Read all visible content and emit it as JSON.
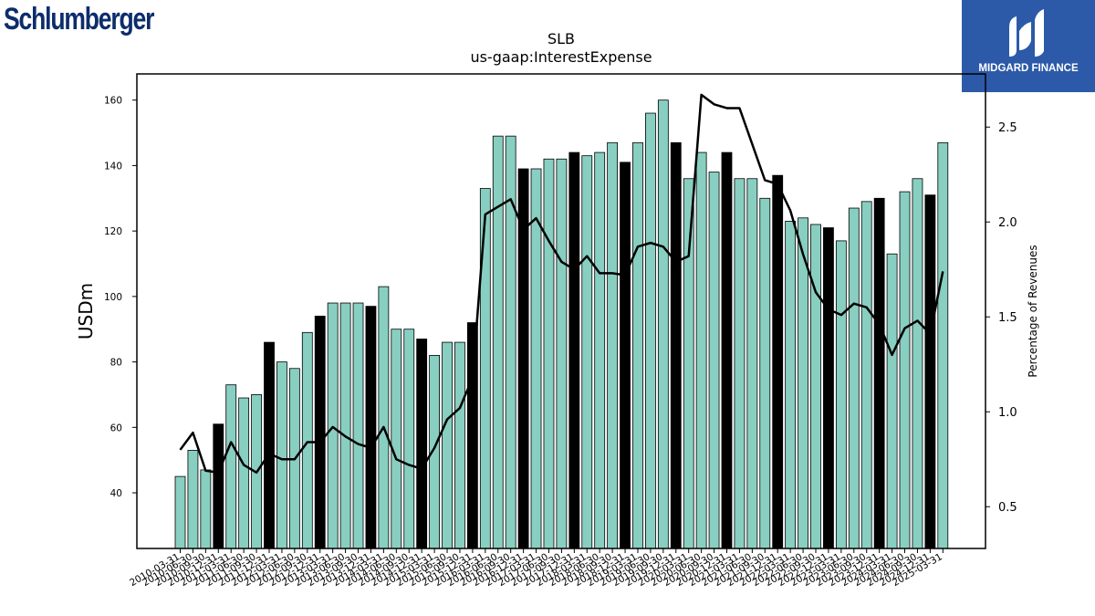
{
  "logos": {
    "left_text": "Schlumberger",
    "left_color": "#0d2d6b",
    "right_text": "MIDGARD FINANCE",
    "right_bg": "#2c5aa8"
  },
  "colors": {
    "bar": "#88cfc1",
    "bar_highlight": "#000000",
    "line": "#000000"
  },
  "chart_data": {
    "type": "bar",
    "title": "SLB",
    "subtitle": "us-gaap:InterestExpense",
    "ylabel": "USDm",
    "y2label": "Percentage of Revenues",
    "ylim": [
      23,
      168
    ],
    "y2lim": [
      0.28,
      2.78
    ],
    "yticks": [
      40,
      60,
      80,
      100,
      120,
      140,
      160
    ],
    "y2ticks": [
      0.5,
      1.0,
      1.5,
      2.0,
      2.5
    ],
    "ytick_labels": [
      "40",
      "60",
      "80",
      "100",
      "120",
      "140",
      "160"
    ],
    "y2tick_labels": [
      "0.5",
      "1.0",
      "1.5",
      "2.0",
      "2.5"
    ],
    "xtick_labels": [
      "2010-03-31",
      "2010-06-30",
      "2010-09-30",
      "2010-12-31",
      "2011-03-31",
      "2011-06-30",
      "2011-09-30",
      "2011-12-31",
      "2012-03-31",
      "2012-06-30",
      "2012-09-30",
      "2012-12-31",
      "2013-03-31",
      "2013-06-30",
      "2013-09-30",
      "2013-12-31",
      "2014-03-31",
      "2014-06-30",
      "2014-09-30",
      "2014-12-31",
      "2015-03-31",
      "2015-06-30",
      "2015-09-30",
      "2015-12-31",
      "2016-03-31",
      "2016-06-30",
      "2016-09-30",
      "2016-12-31",
      "2017-03-31",
      "2017-06-30",
      "2017-09-30",
      "2017-12-31",
      "2018-03-31",
      "2018-06-30",
      "2018-09-30",
      "2018-12-31",
      "2019-03-31",
      "2019-06-30",
      "2019-09-30",
      "2019-12-31",
      "2020-03-31",
      "2020-06-30",
      "2020-09-30",
      "2020-12-31",
      "2021-03-31",
      "2021-06-30",
      "2021-09-30",
      "2021-12-31",
      "2022-03-31",
      "2022-06-30",
      "2022-09-30",
      "2022-12-31",
      "2023-03-31",
      "2023-06-30",
      "2023-09-30",
      "2023-12-31",
      "2024-03-31",
      "2024-06-30",
      "2024-09-30",
      "2024-12-31",
      "2025-03-31"
    ],
    "highlight_quarter": "Q4",
    "series": [
      {
        "name": "InterestExpense",
        "type": "bar",
        "axis": "left",
        "values": [
          45,
          53,
          47,
          61,
          73,
          69,
          70,
          86,
          80,
          78,
          89,
          94,
          98,
          98,
          98,
          97,
          103,
          90,
          90,
          87,
          82,
          86,
          86,
          92,
          133,
          149,
          149,
          139,
          139,
          142,
          142,
          144,
          143,
          144,
          147,
          141,
          147,
          156,
          160,
          147,
          136,
          144,
          138,
          144,
          136,
          136,
          130,
          137,
          123,
          124,
          122,
          121,
          117,
          127,
          129,
          130,
          113,
          132,
          136,
          131,
          147
        ]
      },
      {
        "name": "Percentage of Revenues",
        "type": "line",
        "axis": "right",
        "values": [
          0.8,
          0.89,
          0.69,
          0.68,
          0.84,
          0.72,
          0.68,
          0.78,
          0.75,
          0.75,
          0.84,
          0.84,
          0.92,
          0.87,
          0.83,
          0.81,
          0.92,
          0.75,
          0.72,
          0.7,
          0.81,
          0.96,
          1.02,
          1.18,
          2.04,
          2.08,
          2.12,
          1.96,
          2.02,
          1.9,
          1.79,
          1.75,
          1.82,
          1.73,
          1.73,
          1.72,
          1.87,
          1.89,
          1.87,
          1.79,
          1.82,
          2.67,
          2.62,
          2.6,
          2.6,
          2.41,
          2.22,
          2.2,
          2.06,
          1.83,
          1.63,
          1.54,
          1.51,
          1.57,
          1.55,
          1.46,
          1.3,
          1.44,
          1.48,
          1.41,
          1.74
        ]
      }
    ]
  }
}
